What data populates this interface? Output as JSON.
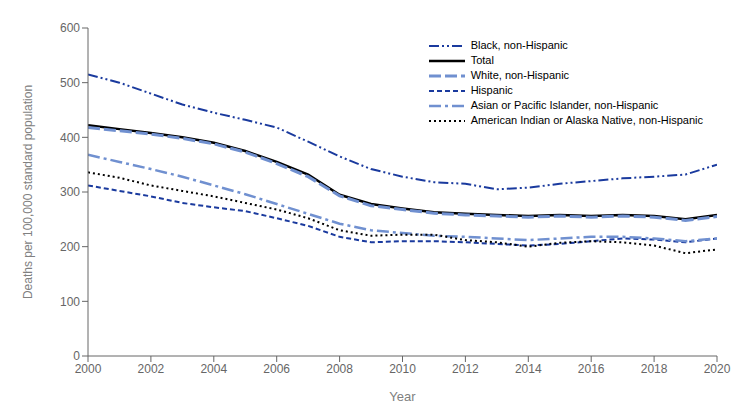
{
  "chart_data": {
    "type": "line",
    "xlabel": "Year",
    "ylabel": "Deaths per 100,000 standard population",
    "x": [
      2000,
      2001,
      2002,
      2003,
      2004,
      2005,
      2006,
      2007,
      2008,
      2009,
      2010,
      2011,
      2012,
      2013,
      2014,
      2015,
      2016,
      2017,
      2018,
      2019,
      2020
    ],
    "xlim": [
      2000,
      2020
    ],
    "xticks": [
      2000,
      2002,
      2004,
      2006,
      2008,
      2010,
      2012,
      2014,
      2016,
      2018,
      2020
    ],
    "ylim": [
      0,
      600
    ],
    "yticks": [
      0,
      100,
      200,
      300,
      400,
      500,
      600
    ],
    "grid": false,
    "legend": "upper right",
    "series": [
      {
        "name": "Black, non-Hispanic",
        "color": "#1a3a9e",
        "line_style": "dashdotdot",
        "values": [
          515,
          500,
          480,
          460,
          445,
          432,
          418,
          392,
          365,
          342,
          328,
          318,
          315,
          305,
          308,
          315,
          320,
          325,
          328,
          332,
          350
        ]
      },
      {
        "name": "Total",
        "color": "#000000",
        "line_style": "solid",
        "values": [
          422,
          415,
          408,
          400,
          390,
          375,
          355,
          332,
          295,
          278,
          270,
          263,
          260,
          258,
          256,
          258,
          256,
          258,
          256,
          250,
          258
        ]
      },
      {
        "name": "White, non-Hispanic",
        "color": "#7090d0",
        "line_style": "dashed",
        "values": [
          418,
          412,
          406,
          398,
          388,
          373,
          352,
          328,
          293,
          275,
          268,
          261,
          258,
          256,
          254,
          256,
          254,
          256,
          254,
          248,
          255
        ]
      },
      {
        "name": "Hispanic",
        "color": "#1a3a9e",
        "line_style": "densely_dashed",
        "values": [
          312,
          302,
          292,
          280,
          272,
          265,
          252,
          238,
          218,
          208,
          210,
          210,
          208,
          205,
          202,
          205,
          210,
          215,
          213,
          208,
          215
        ]
      },
      {
        "name": "Asian or Pacific Islander, non-Hispanic",
        "color": "#7090d0",
        "line_style": "dashdot",
        "values": [
          368,
          355,
          342,
          328,
          312,
          296,
          278,
          260,
          242,
          230,
          225,
          220,
          218,
          215,
          212,
          215,
          218,
          218,
          215,
          210,
          215
        ]
      },
      {
        "name": "American Indian or Alaska Native, non-Hispanic",
        "color": "#000000",
        "line_style": "dotted",
        "values": [
          336,
          326,
          312,
          302,
          292,
          280,
          268,
          252,
          230,
          220,
          222,
          222,
          212,
          208,
          200,
          207,
          210,
          208,
          202,
          188,
          195
        ]
      }
    ]
  }
}
